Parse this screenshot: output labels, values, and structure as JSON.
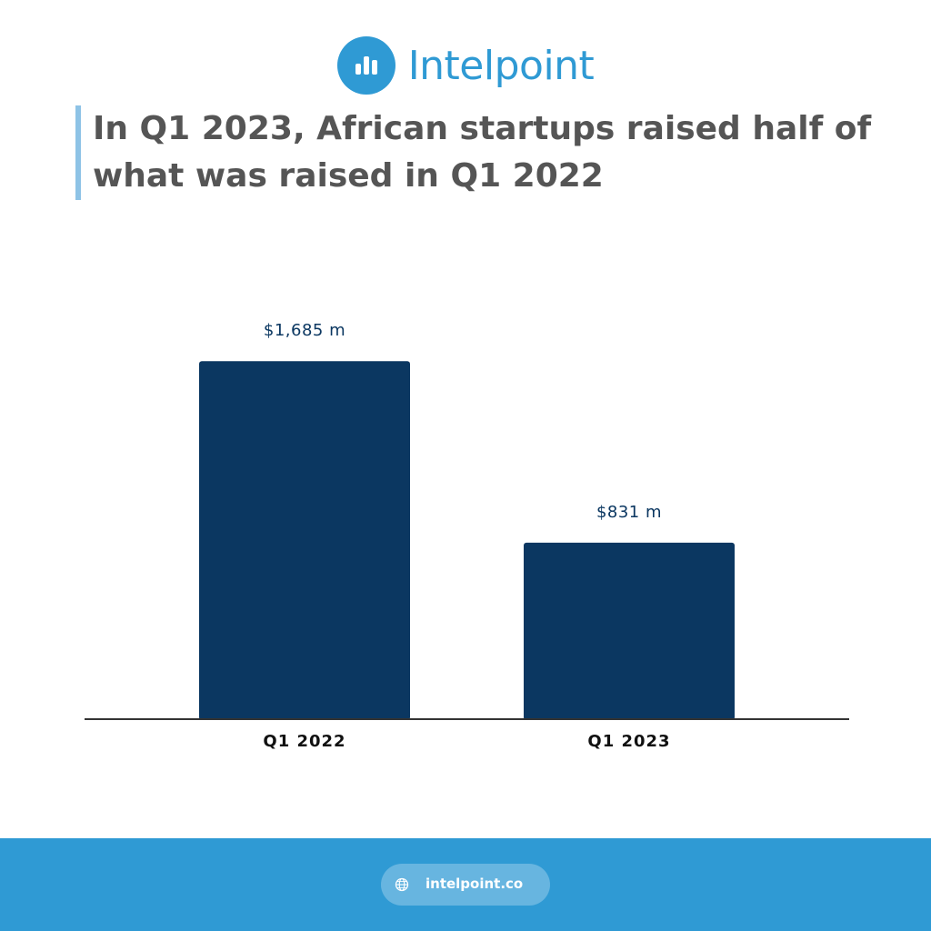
{
  "brand": {
    "name": "Intelpoint",
    "color": "#2f9ad4",
    "icon": "bar-chart-logo-icon"
  },
  "headline": "In Q1 2023, African startups raised half of what was raised in Q1 2022",
  "chart_data": {
    "type": "bar",
    "categories": [
      "Q1 2022",
      "Q1 2023"
    ],
    "values": [
      1685,
      831
    ],
    "value_labels": [
      "$1,685 m",
      "$831 m"
    ],
    "bar_color": "#0b3761",
    "ylim": [
      0,
      1960
    ],
    "grid": false
  },
  "footer": {
    "url": "intelpoint.co",
    "icon": "globe-icon",
    "background": "#2f9ad4"
  }
}
